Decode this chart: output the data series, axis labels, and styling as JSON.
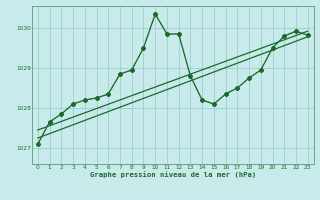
{
  "title": "Graphe pression niveau de la mer (hPa)",
  "bg_color": "#c8eaea",
  "grid_color": "#9ecece",
  "line_color": "#1a6b2a",
  "xlim": [
    -0.5,
    23.5
  ],
  "ylim": [
    1026.6,
    1030.55
  ],
  "xticks": [
    0,
    1,
    2,
    3,
    4,
    5,
    6,
    7,
    8,
    9,
    10,
    11,
    12,
    13,
    14,
    15,
    16,
    17,
    18,
    19,
    20,
    21,
    22,
    23
  ],
  "yticks": [
    1027,
    1028,
    1029,
    1030
  ],
  "series_dotted": {
    "x": [
      0,
      1,
      2,
      3,
      4,
      5,
      6,
      7,
      8,
      9,
      10,
      11,
      12,
      13,
      14,
      15,
      16,
      17,
      18,
      19,
      20,
      21,
      22,
      23
    ],
    "y": [
      1027.1,
      1027.65,
      1027.85,
      1028.1,
      1028.2,
      1028.25,
      1028.35,
      1028.85,
      1028.95,
      1029.5,
      1030.35,
      1029.85,
      1029.85,
      1028.8,
      1028.2,
      1028.1,
      1028.35,
      1028.5,
      1028.75,
      1028.95,
      1029.5,
      1029.8,
      1029.92,
      1029.82
    ]
  },
  "series_solid": {
    "x": [
      0,
      1,
      2,
      3,
      4,
      5,
      6,
      7,
      8,
      9,
      10,
      11,
      12,
      13,
      14,
      15,
      16,
      17,
      18,
      19,
      20,
      21,
      22,
      23
    ],
    "y": [
      1027.1,
      1027.65,
      1027.85,
      1028.1,
      1028.2,
      1028.25,
      1028.35,
      1028.85,
      1028.95,
      1029.5,
      1030.35,
      1029.85,
      1029.85,
      1028.8,
      1028.2,
      1028.1,
      1028.35,
      1028.5,
      1028.75,
      1028.95,
      1029.5,
      1029.8,
      1029.92,
      1029.82
    ]
  },
  "trend1": {
    "x": [
      0,
      23
    ],
    "y": [
      1027.25,
      1029.78
    ]
  },
  "trend2": {
    "x": [
      0,
      23
    ],
    "y": [
      1027.45,
      1029.92
    ]
  }
}
